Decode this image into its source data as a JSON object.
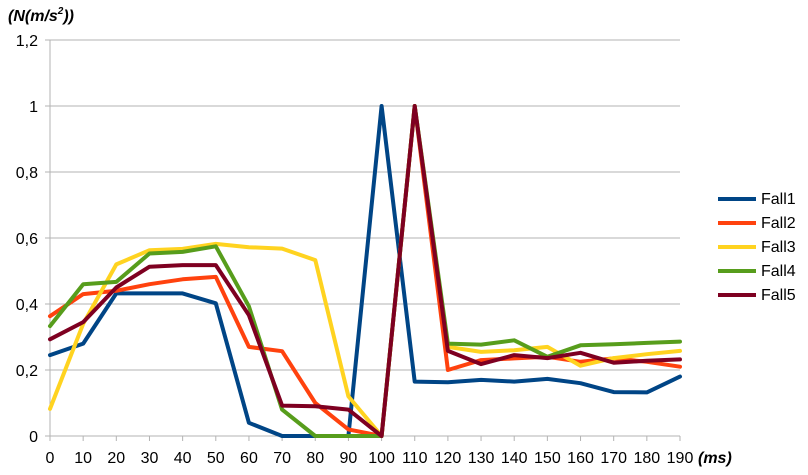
{
  "chart_data": {
    "type": "line",
    "title": "",
    "xlabel": "(ms)",
    "ylabel": "(N(m/s²))",
    "ylabel_parts": {
      "prefix": "(N(m/s",
      "sup": "2",
      "suffix": "))"
    },
    "x": [
      0,
      10,
      20,
      30,
      40,
      50,
      60,
      70,
      80,
      90,
      100,
      110,
      120,
      130,
      140,
      150,
      160,
      170,
      180,
      190
    ],
    "xlim": [
      0,
      190
    ],
    "ylim": [
      0,
      1.2
    ],
    "y_ticks": [
      0,
      0.2,
      0.4,
      0.6,
      0.8,
      1,
      1.2
    ],
    "y_tick_labels": [
      "0",
      "0,2",
      "0,4",
      "0,6",
      "0,8",
      "1",
      "1,2"
    ],
    "grid": true,
    "legend_position": "right",
    "series": [
      {
        "name": "Fall1",
        "color": "#004586",
        "values": [
          0.245,
          0.28,
          0.432,
          0.432,
          0.432,
          0.402,
          0.04,
          0.0,
          0.0,
          0.0,
          1.0,
          0.165,
          0.163,
          0.17,
          0.165,
          0.173,
          0.16,
          0.133,
          0.132,
          0.18
        ]
      },
      {
        "name": "Fall2",
        "color": "#ff420e",
        "values": [
          0.363,
          0.43,
          0.44,
          0.46,
          0.475,
          0.482,
          0.27,
          0.257,
          0.1,
          0.02,
          0.0,
          1.0,
          0.2,
          0.23,
          0.235,
          0.24,
          0.225,
          0.235,
          0.225,
          0.21
        ]
      },
      {
        "name": "Fall3",
        "color": "#ffd320",
        "values": [
          0.082,
          0.34,
          0.52,
          0.563,
          0.567,
          0.582,
          0.572,
          0.568,
          0.533,
          0.12,
          0.0,
          1.0,
          0.27,
          0.255,
          0.26,
          0.27,
          0.213,
          0.236,
          0.248,
          0.258
        ]
      },
      {
        "name": "Fall4",
        "color": "#579d1c",
        "values": [
          0.333,
          0.46,
          0.467,
          0.553,
          0.558,
          0.575,
          0.393,
          0.08,
          0.0,
          0.0,
          0.0,
          1.0,
          0.28,
          0.277,
          0.29,
          0.24,
          0.275,
          0.278,
          0.282,
          0.286
        ]
      },
      {
        "name": "Fall5",
        "color": "#7e0021",
        "values": [
          0.293,
          0.345,
          0.45,
          0.513,
          0.518,
          0.518,
          0.366,
          0.092,
          0.09,
          0.08,
          0.0,
          1.0,
          0.258,
          0.218,
          0.245,
          0.236,
          0.252,
          0.222,
          0.228,
          0.232
        ]
      }
    ]
  }
}
